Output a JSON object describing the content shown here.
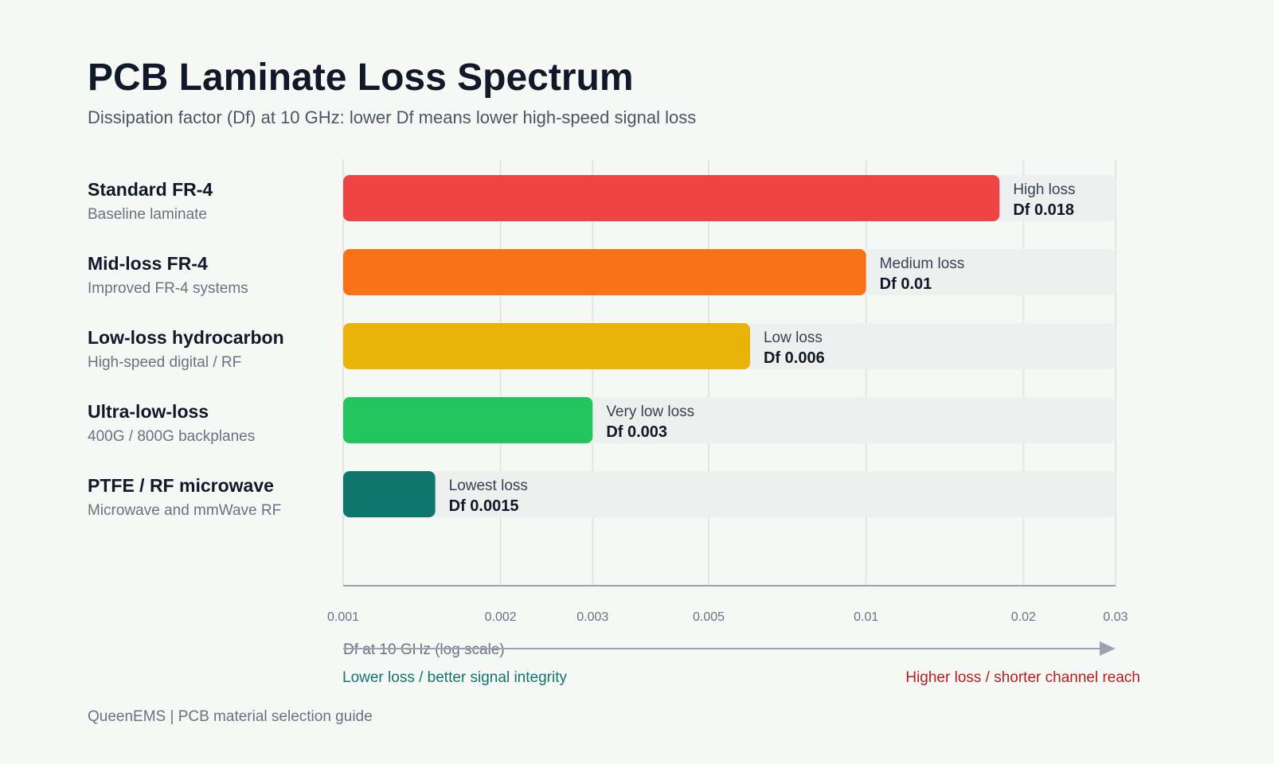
{
  "header": {
    "title": "PCB Laminate Loss Spectrum",
    "subtitle": "Dissipation factor (Df) at 10 GHz: lower Df means lower high-speed signal loss"
  },
  "chart_data": {
    "type": "bar",
    "orientation": "horizontal",
    "xscale": "log",
    "xlim": [
      0.001,
      0.03
    ],
    "xticks": [
      0.001,
      0.002,
      0.003,
      0.005,
      0.01,
      0.02,
      0.03
    ],
    "xtick_labels": [
      "0.001",
      "0.002",
      "0.003",
      "0.005",
      "0.01",
      "0.02",
      "0.03"
    ],
    "xlabel": "Df at 10 GHz (log scale)",
    "grid": true,
    "categories": [
      {
        "name": "Standard FR-4",
        "sub": "Baseline laminate",
        "value": 0.018,
        "loss_label": "High loss",
        "value_label": "Df 0.018",
        "color": "#ef4444"
      },
      {
        "name": "Mid-loss FR-4",
        "sub": "Improved FR-4 systems",
        "value": 0.01,
        "loss_label": "Medium loss",
        "value_label": "Df 0.01",
        "color": "#f97316"
      },
      {
        "name": "Low-loss hydrocarbon",
        "sub": "High-speed digital / RF",
        "value": 0.006,
        "loss_label": "Low loss",
        "value_label": "Df 0.006",
        "color": "#eab308"
      },
      {
        "name": "Ultra-low-loss",
        "sub": "400G / 800G backplanes",
        "value": 0.003,
        "loss_label": "Very low loss",
        "value_label": "Df 0.003",
        "color": "#22c55e"
      },
      {
        "name": "PTFE / RF microwave",
        "sub": "Microwave and mmWave RF",
        "value": 0.0015,
        "loss_label": "Lowest loss",
        "value_label": "Df 0.0015",
        "color": "#0f766e"
      }
    ]
  },
  "notes": {
    "left": "Lower loss / better signal integrity",
    "right": "Higher loss / shorter channel reach"
  },
  "footer": "QueenEMS | PCB material selection guide"
}
